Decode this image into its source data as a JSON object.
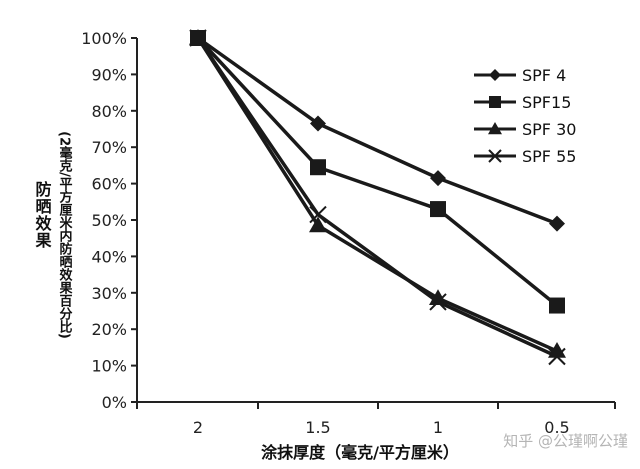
{
  "chart_data": {
    "type": "line",
    "categories": [
      "2",
      "1.5",
      "1",
      "0.5"
    ],
    "series": [
      {
        "name": "SPF 4",
        "marker": "diamond",
        "values": [
          100,
          76.5,
          61.5,
          49
        ]
      },
      {
        "name": "SPF15",
        "marker": "square",
        "values": [
          100,
          64.5,
          53,
          26.5
        ]
      },
      {
        "name": "SPF 30",
        "marker": "triangle",
        "values": [
          100,
          48.5,
          28.5,
          14
        ]
      },
      {
        "name": "SPF 55",
        "marker": "x",
        "values": [
          100,
          51.5,
          27.5,
          12.5
        ]
      }
    ],
    "xlabel": "涂抹厚度（毫克/平方厘米）",
    "ylabel": "防晒效果",
    "ylabel_sub": "(2毫克/平方厘米内防晒效果百分比)",
    "yticks": [
      "0%",
      "10%",
      "20%",
      "30%",
      "40%",
      "50%",
      "60%",
      "70%",
      "80%",
      "90%",
      "100%"
    ],
    "ylim": [
      0,
      100
    ],
    "grid": false,
    "legend_position": "top-right",
    "line_color": "#1a1a1a"
  },
  "watermark": "知乎 @公瑾啊公瑾"
}
